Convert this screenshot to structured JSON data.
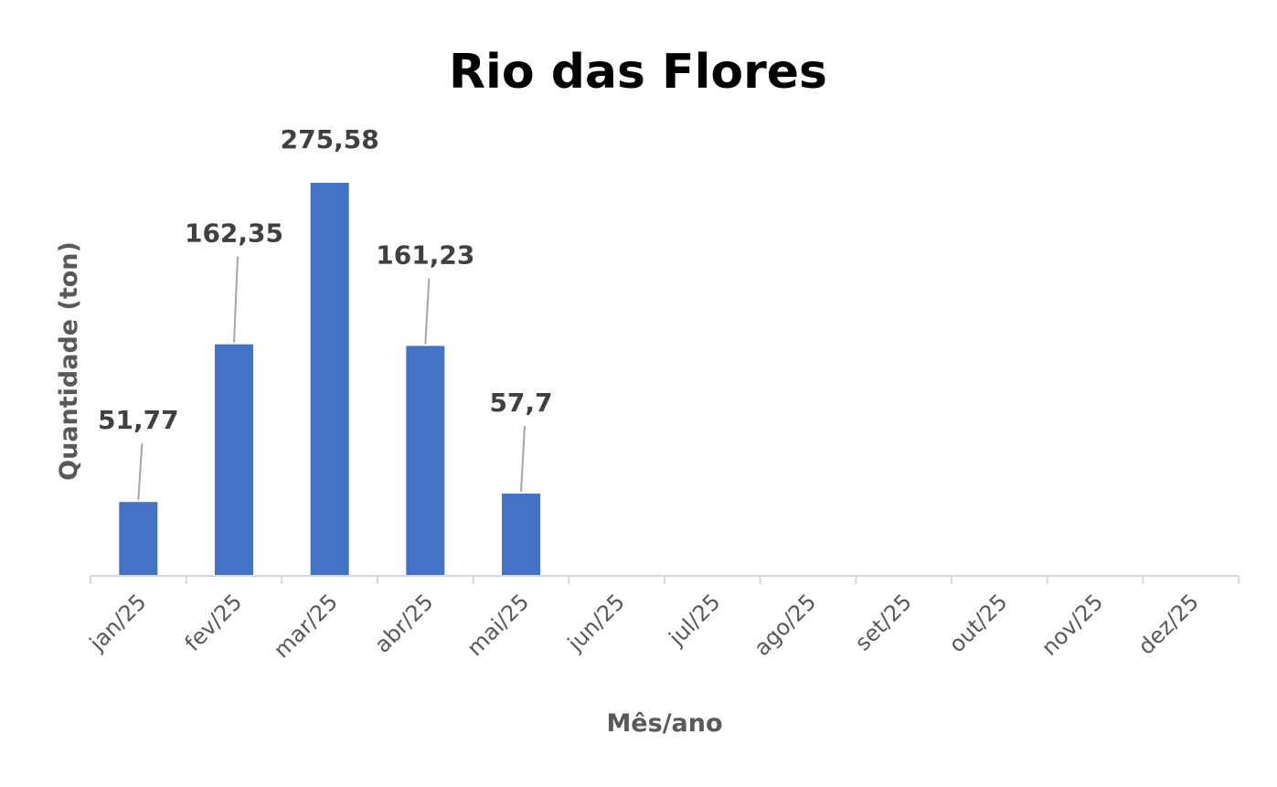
{
  "chart_data": {
    "type": "bar",
    "title": "Rio das Flores",
    "xlabel": "Mês/ano",
    "ylabel": "Quantidade  (ton)",
    "categories": [
      "jan/25",
      "fev/25",
      "mar/25",
      "abr/25",
      "mai/25",
      "jun/25",
      "jul/25",
      "ago/25",
      "set/25",
      "out/25",
      "nov/25",
      "dez/25"
    ],
    "values": [
      51.77,
      162.35,
      275.58,
      161.23,
      57.7,
      null,
      null,
      null,
      null,
      null,
      null,
      null
    ],
    "data_labels": [
      "51,77",
      "162,35",
      "275,58",
      "161,23",
      "57,7",
      "",
      "",
      "",
      "",
      "",
      "",
      ""
    ],
    "ylim": [
      0,
      280
    ],
    "grid": false,
    "legend": "none",
    "bar_color": "#4472C4",
    "axis_color": "#D9D9D9",
    "leader_line_color": "#A6A6A6"
  }
}
